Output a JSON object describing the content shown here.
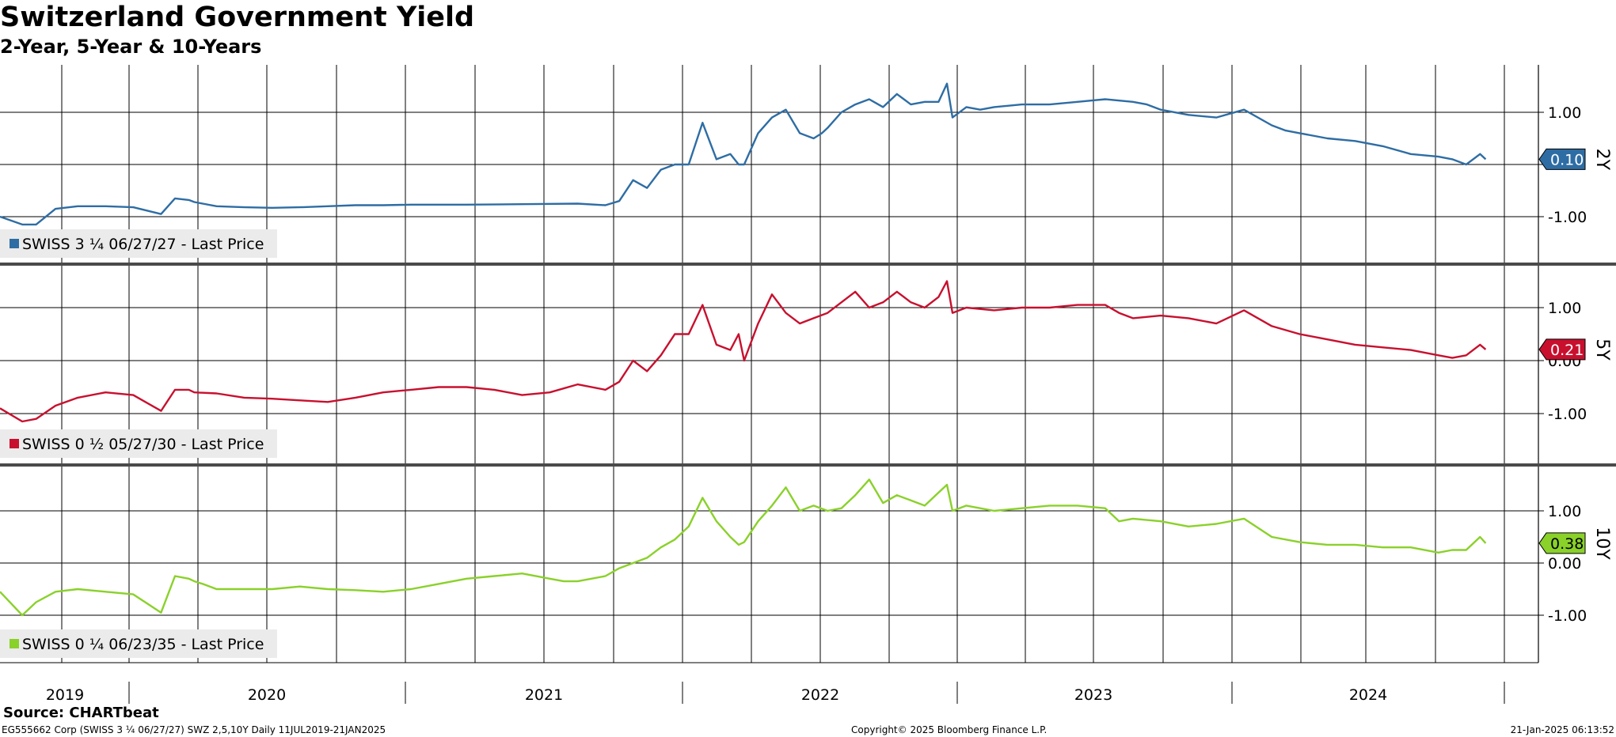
{
  "title": "Switzerland Government Yield",
  "subtitle": "2-Year, 5-Year & 10-Years",
  "source": "Source: CHARTbeat",
  "footer": {
    "left": "EG555662 Corp (SWISS 3 ¼ 06/27/27) SWZ 2,5,10Y  Daily 11JUL2019-21JAN2025",
    "center": "Copyright© 2025 Bloomberg Finance L.P.",
    "right": "21-Jan-2025 06:13:52"
  },
  "colors": {
    "two_year": "#2e6da4",
    "five_year": "#c8102e",
    "ten_year": "#8ad12a",
    "grid": "#000000",
    "legend_bg": "#ebebeb"
  },
  "chart_data": [
    {
      "type": "line",
      "series": [
        {
          "name": "SWISS 3 ¼ 06/27/27 - Last Price",
          "tag": "2Y",
          "last_label": "0.10",
          "x": [
            2019.52,
            2019.6,
            2019.65,
            2019.72,
            2019.8,
            2019.9,
            2020.0,
            2020.1,
            2020.15,
            2020.2,
            2020.22,
            2020.25,
            2020.3,
            2020.4,
            2020.5,
            2020.6,
            2020.7,
            2020.8,
            2020.9,
            2021.0,
            2021.2,
            2021.4,
            2021.6,
            2021.7,
            2021.75,
            2021.8,
            2021.85,
            2021.9,
            2021.95,
            2022.0,
            2022.05,
            2022.1,
            2022.15,
            2022.18,
            2022.2,
            2022.25,
            2022.3,
            2022.35,
            2022.4,
            2022.45,
            2022.48,
            2022.5,
            2022.55,
            2022.6,
            2022.65,
            2022.7,
            2022.75,
            2022.8,
            2022.85,
            2022.9,
            2022.93,
            2022.95,
            2023.0,
            2023.05,
            2023.1,
            2023.2,
            2023.3,
            2023.4,
            2023.5,
            2023.6,
            2023.65,
            2023.7,
            2023.8,
            2023.9,
            2024.0,
            2024.1,
            2024.15,
            2024.2,
            2024.3,
            2024.4,
            2024.5,
            2024.6,
            2024.7,
            2024.75,
            2024.8,
            2024.85,
            2024.87
          ],
          "values": [
            -1.0,
            -1.15,
            -1.15,
            -0.85,
            -0.8,
            -0.8,
            -0.82,
            -0.95,
            -0.65,
            -0.68,
            -0.72,
            -0.75,
            -0.8,
            -0.82,
            -0.83,
            -0.82,
            -0.8,
            -0.78,
            -0.78,
            -0.77,
            -0.77,
            -0.76,
            -0.75,
            -0.78,
            -0.7,
            -0.3,
            -0.45,
            -0.1,
            0.0,
            0.0,
            0.8,
            0.1,
            0.2,
            0.0,
            0.0,
            0.6,
            0.9,
            1.05,
            0.6,
            0.5,
            0.6,
            0.7,
            1.0,
            1.15,
            1.25,
            1.1,
            1.35,
            1.15,
            1.2,
            1.2,
            1.55,
            0.9,
            1.1,
            1.05,
            1.1,
            1.15,
            1.15,
            1.2,
            1.25,
            1.2,
            1.15,
            1.05,
            0.95,
            0.9,
            1.05,
            0.75,
            0.65,
            0.6,
            0.5,
            0.45,
            0.35,
            0.2,
            0.15,
            0.1,
            0.0,
            0.2,
            0.1
          ],
          "ylabels": [
            "1.00",
            "-1.00"
          ],
          "ylim": [
            -1.95,
            1.9
          ]
        }
      ]
    },
    {
      "type": "line",
      "series": [
        {
          "name": "SWISS 0 ½ 05/27/30 - Last Price",
          "tag": "5Y",
          "last_label": "0.21",
          "x": [
            2019.52,
            2019.6,
            2019.65,
            2019.72,
            2019.8,
            2019.9,
            2020.0,
            2020.1,
            2020.15,
            2020.2,
            2020.22,
            2020.3,
            2020.4,
            2020.5,
            2020.6,
            2020.7,
            2020.8,
            2020.9,
            2021.0,
            2021.1,
            2021.2,
            2021.3,
            2021.4,
            2021.5,
            2021.6,
            2021.7,
            2021.75,
            2021.8,
            2021.85,
            2021.9,
            2021.95,
            2022.0,
            2022.05,
            2022.1,
            2022.15,
            2022.18,
            2022.2,
            2022.25,
            2022.3,
            2022.35,
            2022.4,
            2022.45,
            2022.5,
            2022.55,
            2022.6,
            2022.65,
            2022.7,
            2022.75,
            2022.8,
            2022.85,
            2022.9,
            2022.93,
            2022.95,
            2023.0,
            2023.1,
            2023.2,
            2023.3,
            2023.4,
            2023.5,
            2023.55,
            2023.6,
            2023.7,
            2023.8,
            2023.9,
            2024.0,
            2024.1,
            2024.2,
            2024.3,
            2024.4,
            2024.5,
            2024.6,
            2024.7,
            2024.75,
            2024.8,
            2024.85,
            2024.87
          ],
          "values": [
            -0.9,
            -1.15,
            -1.1,
            -0.85,
            -0.7,
            -0.6,
            -0.65,
            -0.95,
            -0.55,
            -0.55,
            -0.6,
            -0.62,
            -0.7,
            -0.72,
            -0.75,
            -0.78,
            -0.7,
            -0.6,
            -0.55,
            -0.5,
            -0.5,
            -0.55,
            -0.65,
            -0.6,
            -0.45,
            -0.55,
            -0.4,
            0.0,
            -0.2,
            0.1,
            0.5,
            0.5,
            1.05,
            0.3,
            0.2,
            0.5,
            0.0,
            0.7,
            1.25,
            0.9,
            0.7,
            0.8,
            0.9,
            1.1,
            1.3,
            1.0,
            1.1,
            1.3,
            1.1,
            1.0,
            1.2,
            1.5,
            0.9,
            1.0,
            0.95,
            1.0,
            1.0,
            1.05,
            1.05,
            0.9,
            0.8,
            0.85,
            0.8,
            0.7,
            0.95,
            0.65,
            0.5,
            0.4,
            0.3,
            0.25,
            0.2,
            0.1,
            0.05,
            0.1,
            0.3,
            0.21
          ],
          "ylabels": [
            "1.00",
            "0.00",
            "-1.00"
          ],
          "ylim": [
            -1.95,
            1.9
          ]
        }
      ]
    },
    {
      "type": "line",
      "series": [
        {
          "name": "SWISS 0 ¼ 06/23/35 - Last Price",
          "tag": "10Y",
          "last_label": "0.38",
          "x": [
            2019.52,
            2019.6,
            2019.65,
            2019.72,
            2019.8,
            2019.9,
            2020.0,
            2020.1,
            2020.15,
            2020.2,
            2020.22,
            2020.25,
            2020.3,
            2020.4,
            2020.5,
            2020.6,
            2020.7,
            2020.8,
            2020.9,
            2021.0,
            2021.1,
            2021.2,
            2021.3,
            2021.4,
            2021.5,
            2021.55,
            2021.6,
            2021.7,
            2021.75,
            2021.8,
            2021.85,
            2021.9,
            2021.95,
            2022.0,
            2022.05,
            2022.1,
            2022.15,
            2022.18,
            2022.2,
            2022.25,
            2022.3,
            2022.35,
            2022.4,
            2022.45,
            2022.5,
            2022.55,
            2022.6,
            2022.65,
            2022.7,
            2022.75,
            2022.8,
            2022.85,
            2022.9,
            2022.93,
            2022.95,
            2023.0,
            2023.1,
            2023.2,
            2023.3,
            2023.4,
            2023.5,
            2023.55,
            2023.6,
            2023.7,
            2023.8,
            2023.9,
            2024.0,
            2024.1,
            2024.2,
            2024.3,
            2024.4,
            2024.5,
            2024.6,
            2024.7,
            2024.75,
            2024.8,
            2024.85,
            2024.87
          ],
          "values": [
            -0.55,
            -1.0,
            -0.75,
            -0.55,
            -0.5,
            -0.55,
            -0.6,
            -0.95,
            -0.25,
            -0.3,
            -0.35,
            -0.4,
            -0.5,
            -0.5,
            -0.5,
            -0.45,
            -0.5,
            -0.52,
            -0.55,
            -0.5,
            -0.4,
            -0.3,
            -0.25,
            -0.2,
            -0.3,
            -0.35,
            -0.35,
            -0.25,
            -0.1,
            0.0,
            0.1,
            0.3,
            0.45,
            0.7,
            1.25,
            0.8,
            0.5,
            0.35,
            0.4,
            0.8,
            1.1,
            1.45,
            1.0,
            1.1,
            1.0,
            1.05,
            1.3,
            1.6,
            1.15,
            1.3,
            1.2,
            1.1,
            1.35,
            1.5,
            1.0,
            1.1,
            1.0,
            1.05,
            1.1,
            1.1,
            1.05,
            0.8,
            0.85,
            0.8,
            0.7,
            0.75,
            0.85,
            0.5,
            0.4,
            0.35,
            0.35,
            0.3,
            0.3,
            0.2,
            0.25,
            0.25,
            0.5,
            0.38
          ],
          "ylabels": [
            "1.00",
            "0.00",
            "-1.00"
          ],
          "ylim": [
            -1.95,
            1.9
          ]
        }
      ]
    }
  ],
  "x_axis": {
    "year_labels": [
      "2019",
      "2020",
      "2021",
      "2022",
      "2023",
      "2024"
    ],
    "range": [
      2019.52,
      2025.06
    ]
  }
}
